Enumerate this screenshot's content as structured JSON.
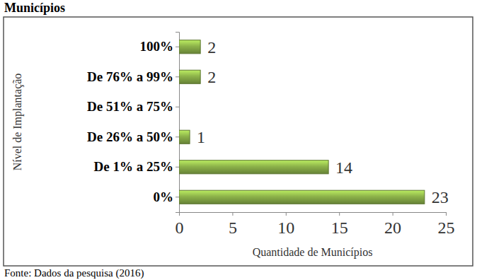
{
  "chart_data": {
    "type": "bar",
    "orientation": "horizontal",
    "title": "Municípios",
    "x_label": "Quantidade de Municípios",
    "y_label": "Nível de Implantação",
    "categories": [
      "0%",
      "De 1% a 25%",
      "De 26% a 50%",
      "De 51% a 75%",
      "De 76% a 99%",
      "100%"
    ],
    "values": [
      23,
      14,
      1,
      0,
      2,
      2
    ],
    "value_labels": [
      "23",
      "14",
      "1",
      null,
      "2",
      "2"
    ],
    "data_labels": true,
    "color": "#8db34a",
    "xlim": [
      0,
      25
    ],
    "xticks": [
      0,
      5,
      10,
      15,
      20,
      25
    ],
    "grid": false,
    "annotations": [
      "Fonte: Dados da pesquisa (2016)"
    ]
  }
}
